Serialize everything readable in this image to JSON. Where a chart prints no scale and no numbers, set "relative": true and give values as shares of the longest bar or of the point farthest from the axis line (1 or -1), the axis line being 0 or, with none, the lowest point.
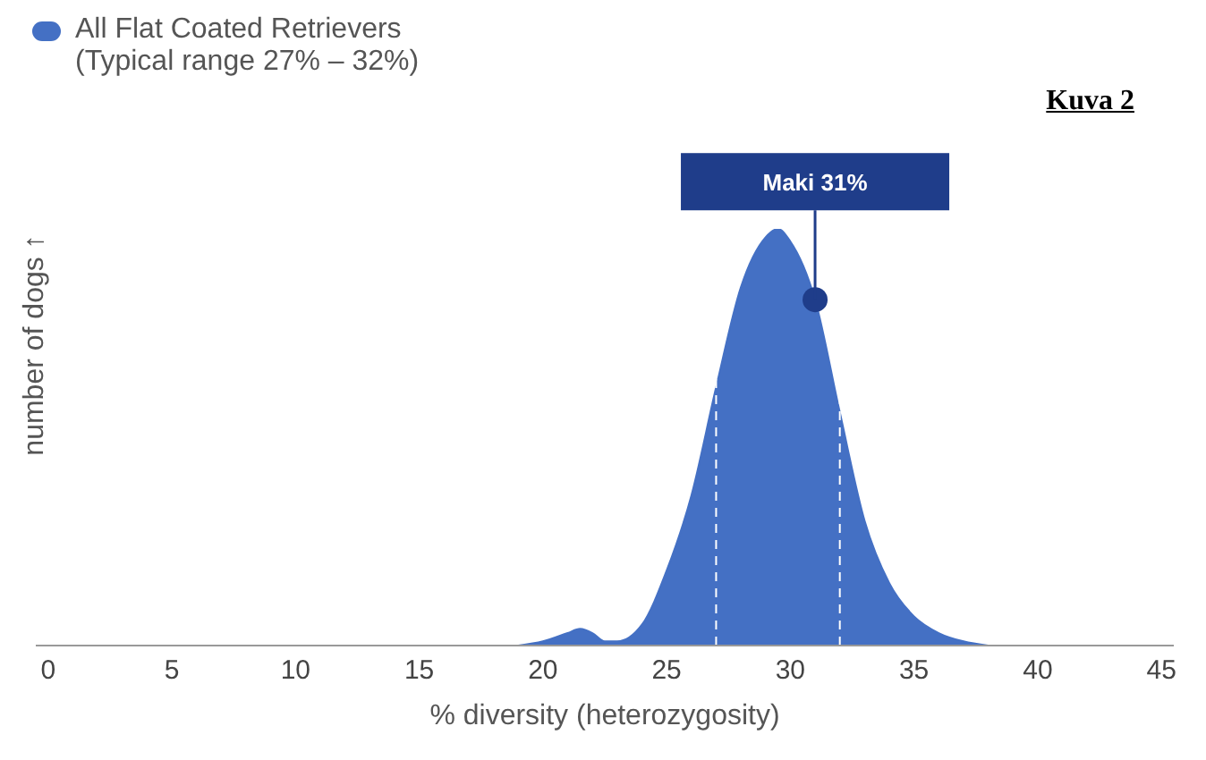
{
  "chart_data": {
    "type": "area",
    "relative": true,
    "xlabel": "% diversity (heterozygosity)",
    "ylabel": "number of dogs ↑",
    "xlim": [
      -0.5,
      45.5
    ],
    "xticks": [
      0,
      5,
      10,
      15,
      20,
      25,
      30,
      35,
      40,
      45
    ],
    "legend": "top left",
    "series": [
      {
        "name": "All Flat Coated Retrievers",
        "color": "#4470c4",
        "x": [
          19,
          20,
          21,
          21.5,
          22,
          22.5,
          23,
          24,
          25,
          26,
          27,
          28,
          29,
          29.5,
          30,
          31,
          32,
          33,
          34,
          35,
          36,
          37,
          38
        ],
        "values": [
          0,
          0.01,
          0.03,
          0.04,
          0.03,
          0.01,
          0.01,
          0.05,
          0.18,
          0.36,
          0.62,
          0.86,
          0.98,
          1,
          0.97,
          0.83,
          0.56,
          0.3,
          0.15,
          0.07,
          0.03,
          0.01,
          0
        ]
      },
      {
        "type": "scatter",
        "color": "#1f3d8a",
        "marker": "circle",
        "x": [
          31
        ],
        "values": [
          0.83
        ]
      }
    ],
    "ref_lines": [
      {
        "axis": "x",
        "value": 27,
        "color": "#ffffff",
        "line_style": "dashed"
      },
      {
        "axis": "x",
        "value": 32,
        "color": "#ffffff",
        "line_style": "dashed"
      }
    ],
    "annotations": [
      "(Typical range 27% – 32%)",
      "Kuva 2",
      {
        "text": "Maki 31%",
        "x": 31,
        "y": 0.83
      }
    ]
  }
}
